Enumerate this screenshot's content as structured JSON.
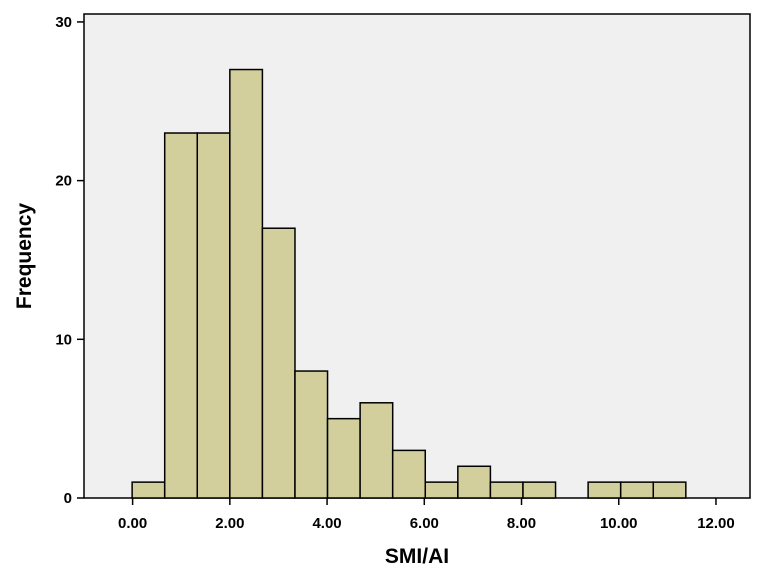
{
  "chart_data": {
    "type": "bar",
    "subtype": "histogram",
    "title": "",
    "xlabel": "SMI/AI",
    "ylabel": "Frequency",
    "bin_width": 0.67,
    "bin_starts": [
      -0.01,
      0.66,
      1.33,
      2.0,
      2.67,
      3.34,
      4.01,
      4.68,
      5.35,
      6.02,
      6.69,
      7.36,
      8.03,
      8.7,
      9.37,
      10.04,
      10.71
    ],
    "values": [
      1,
      23,
      23,
      27,
      17,
      8,
      5,
      6,
      3,
      1,
      2,
      1,
      1,
      0,
      1,
      1,
      1
    ],
    "xlim": [
      -1.0,
      12.7
    ],
    "ylim": [
      0,
      30.5
    ],
    "x_ticks": [
      0,
      2,
      4,
      6,
      8,
      10,
      12
    ],
    "x_tick_labels": [
      "0.00",
      "2.00",
      "4.00",
      "6.00",
      "8.00",
      "10.00",
      "12.00"
    ],
    "y_ticks": [
      0,
      10,
      20,
      30
    ],
    "y_tick_labels": [
      "0",
      "10",
      "20",
      "30"
    ],
    "grid": false,
    "colors": {
      "bar_fill": "#d3cf9c",
      "bar_stroke": "#000000",
      "plot_background": "#f0f0f0",
      "frame": "#000000"
    }
  }
}
